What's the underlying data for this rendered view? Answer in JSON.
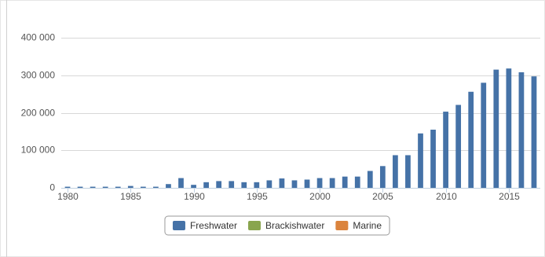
{
  "chart_data": {
    "type": "bar",
    "x": [
      1980,
      1981,
      1982,
      1983,
      1984,
      1985,
      1986,
      1987,
      1988,
      1989,
      1990,
      1991,
      1992,
      1993,
      1994,
      1995,
      1996,
      1997,
      1998,
      1999,
      2000,
      2001,
      2002,
      2003,
      2004,
      2005,
      2006,
      2007,
      2008,
      2009,
      2010,
      2011,
      2012,
      2013,
      2014,
      2015,
      2016,
      2017
    ],
    "series": [
      {
        "name": "Freshwater",
        "color": "#4572a7",
        "values": [
          3000,
          3000,
          3000,
          3000,
          3000,
          5000,
          3000,
          3000,
          10000,
          26000,
          8000,
          15000,
          18000,
          18000,
          15000,
          15000,
          20000,
          25000,
          20000,
          22000,
          26000,
          26000,
          30000,
          30000,
          45000,
          58000,
          87000,
          87000,
          145000,
          155000,
          203000,
          221000,
          256000,
          280000,
          315000,
          318000,
          308000,
          297000
        ]
      },
      {
        "name": "Brackishwater",
        "color": "#89a54e",
        "values": [
          0,
          0,
          0,
          0,
          0,
          0,
          0,
          0,
          0,
          0,
          0,
          0,
          0,
          0,
          0,
          0,
          0,
          0,
          0,
          0,
          0,
          0,
          0,
          0,
          0,
          0,
          0,
          0,
          0,
          0,
          0,
          0,
          0,
          0,
          0,
          0,
          0,
          0
        ]
      },
      {
        "name": "Marine",
        "color": "#db843d",
        "values": [
          0,
          0,
          0,
          0,
          0,
          0,
          0,
          0,
          0,
          0,
          0,
          0,
          0,
          0,
          0,
          0,
          0,
          0,
          0,
          0,
          0,
          0,
          0,
          0,
          0,
          0,
          0,
          0,
          0,
          0,
          0,
          0,
          0,
          0,
          0,
          0,
          0,
          0
        ]
      }
    ],
    "xlim": [
      1979.5,
      2017.5
    ],
    "xticks": [
      1980,
      1985,
      1990,
      1995,
      2000,
      2005,
      2010,
      2015
    ],
    "ylim": [
      0,
      400000
    ],
    "yticks": [
      0,
      {
        "value": 100000,
        "label": "100 000"
      },
      {
        "value": 200000,
        "label": "200 000"
      },
      {
        "value": 300000,
        "label": "300 000"
      },
      {
        "value": 400000,
        "label": "400 000"
      }
    ],
    "grid": true,
    "stacked": true,
    "legend": "bottom"
  }
}
